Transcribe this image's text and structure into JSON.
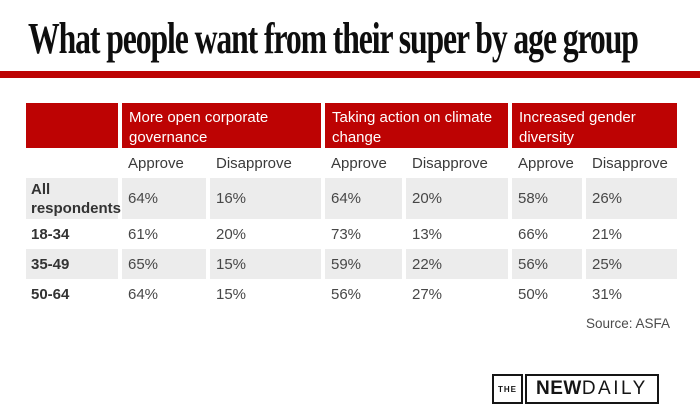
{
  "page": {
    "title": "What people want from their super by age group"
  },
  "colors": {
    "accent_red": "#bd0303",
    "stripe_gray": "#ececec"
  },
  "table": {
    "groups": [
      {
        "label": "More open corporate governance"
      },
      {
        "label": "Taking action on climate change"
      },
      {
        "label": "Increased gender diversity"
      }
    ],
    "subheaders": [
      "Approve",
      "Disapprove",
      "Approve",
      "Disapprove",
      "Approve",
      "Disapprove"
    ],
    "rows": [
      {
        "label": "All respondents",
        "values": [
          "64%",
          "16%",
          "64%",
          "20%",
          "58%",
          "26%"
        ]
      },
      {
        "label": "18-34",
        "values": [
          "61%",
          "20%",
          "73%",
          "13%",
          "66%",
          "21%"
        ]
      },
      {
        "label": "35-49",
        "values": [
          "65%",
          "15%",
          "59%",
          "22%",
          "56%",
          "25%"
        ]
      },
      {
        "label": "50-64",
        "values": [
          "64%",
          "15%",
          "56%",
          "27%",
          "50%",
          "31%"
        ]
      }
    ]
  },
  "source": "Source: ASFA",
  "logo": {
    "the": "THE",
    "new": "NEW",
    "daily": "DAILY"
  },
  "chart_data": {
    "type": "table",
    "title": "What people want from their super by age group",
    "row_categories": [
      "All respondents",
      "18-34",
      "35-49",
      "50-64"
    ],
    "column_groups": [
      "More open corporate governance",
      "Taking action on climate change",
      "Increased gender diversity"
    ],
    "column_subheaders": [
      "Approve",
      "Disapprove"
    ],
    "series": [
      {
        "name": "More open corporate governance - Approve",
        "values": [
          64,
          61,
          65,
          64
        ]
      },
      {
        "name": "More open corporate governance - Disapprove",
        "values": [
          16,
          20,
          15,
          15
        ]
      },
      {
        "name": "Taking action on climate change - Approve",
        "values": [
          64,
          73,
          59,
          56
        ]
      },
      {
        "name": "Taking action on climate change - Disapprove",
        "values": [
          20,
          13,
          22,
          27
        ]
      },
      {
        "name": "Increased gender diversity - Approve",
        "values": [
          58,
          66,
          56,
          50
        ]
      },
      {
        "name": "Increased gender diversity - Disapprove",
        "values": [
          26,
          21,
          25,
          31
        ]
      }
    ],
    "unit": "%",
    "source": "Source: ASFA"
  }
}
